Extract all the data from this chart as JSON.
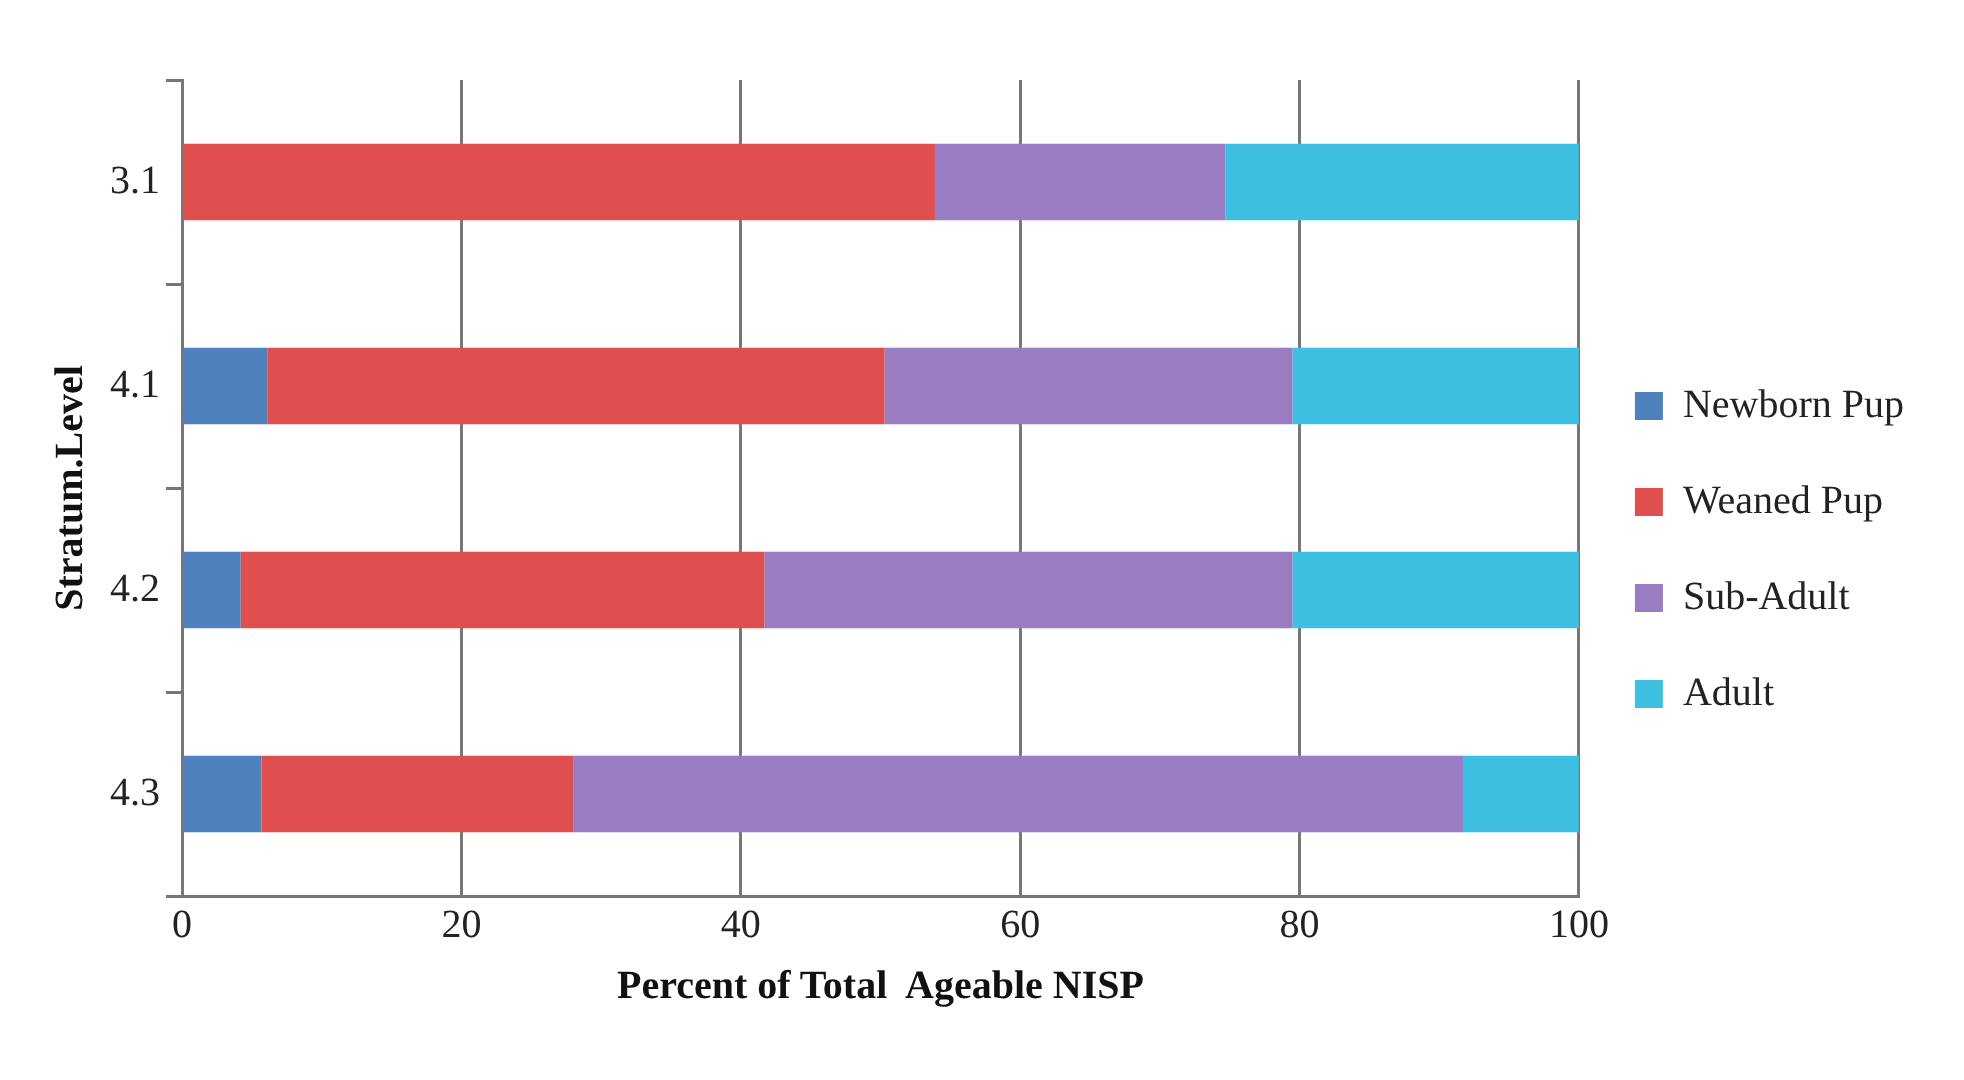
{
  "chart_data": {
    "type": "bar",
    "orientation": "horizontal",
    "stacked": true,
    "categories": [
      "3.1",
      "4.1",
      "4.2",
      "4.3"
    ],
    "series": [
      {
        "name": "Newborn Pup",
        "color": "#4f81bd",
        "values": [
          0,
          6.1,
          4.2,
          5.7
        ]
      },
      {
        "name": "Weaned Pup",
        "color": "#e04f4f",
        "values": [
          53.9,
          44.2,
          37.5,
          22.3
        ]
      },
      {
        "name": "Sub-Adult",
        "color": "#9a7cc2",
        "values": [
          20.8,
          29.2,
          37.8,
          63.7
        ]
      },
      {
        "name": "Adult",
        "color": "#3cbfe0",
        "values": [
          25.3,
          20.5,
          20.5,
          8.3
        ]
      }
    ],
    "xlim": [
      0,
      100
    ],
    "xticks": [
      0,
      20,
      40,
      60,
      80,
      100
    ],
    "xlabel": "Percent of Total  Ageable NISP",
    "ylabel": "Stratum.Level",
    "grid": "x",
    "legend": "right"
  }
}
